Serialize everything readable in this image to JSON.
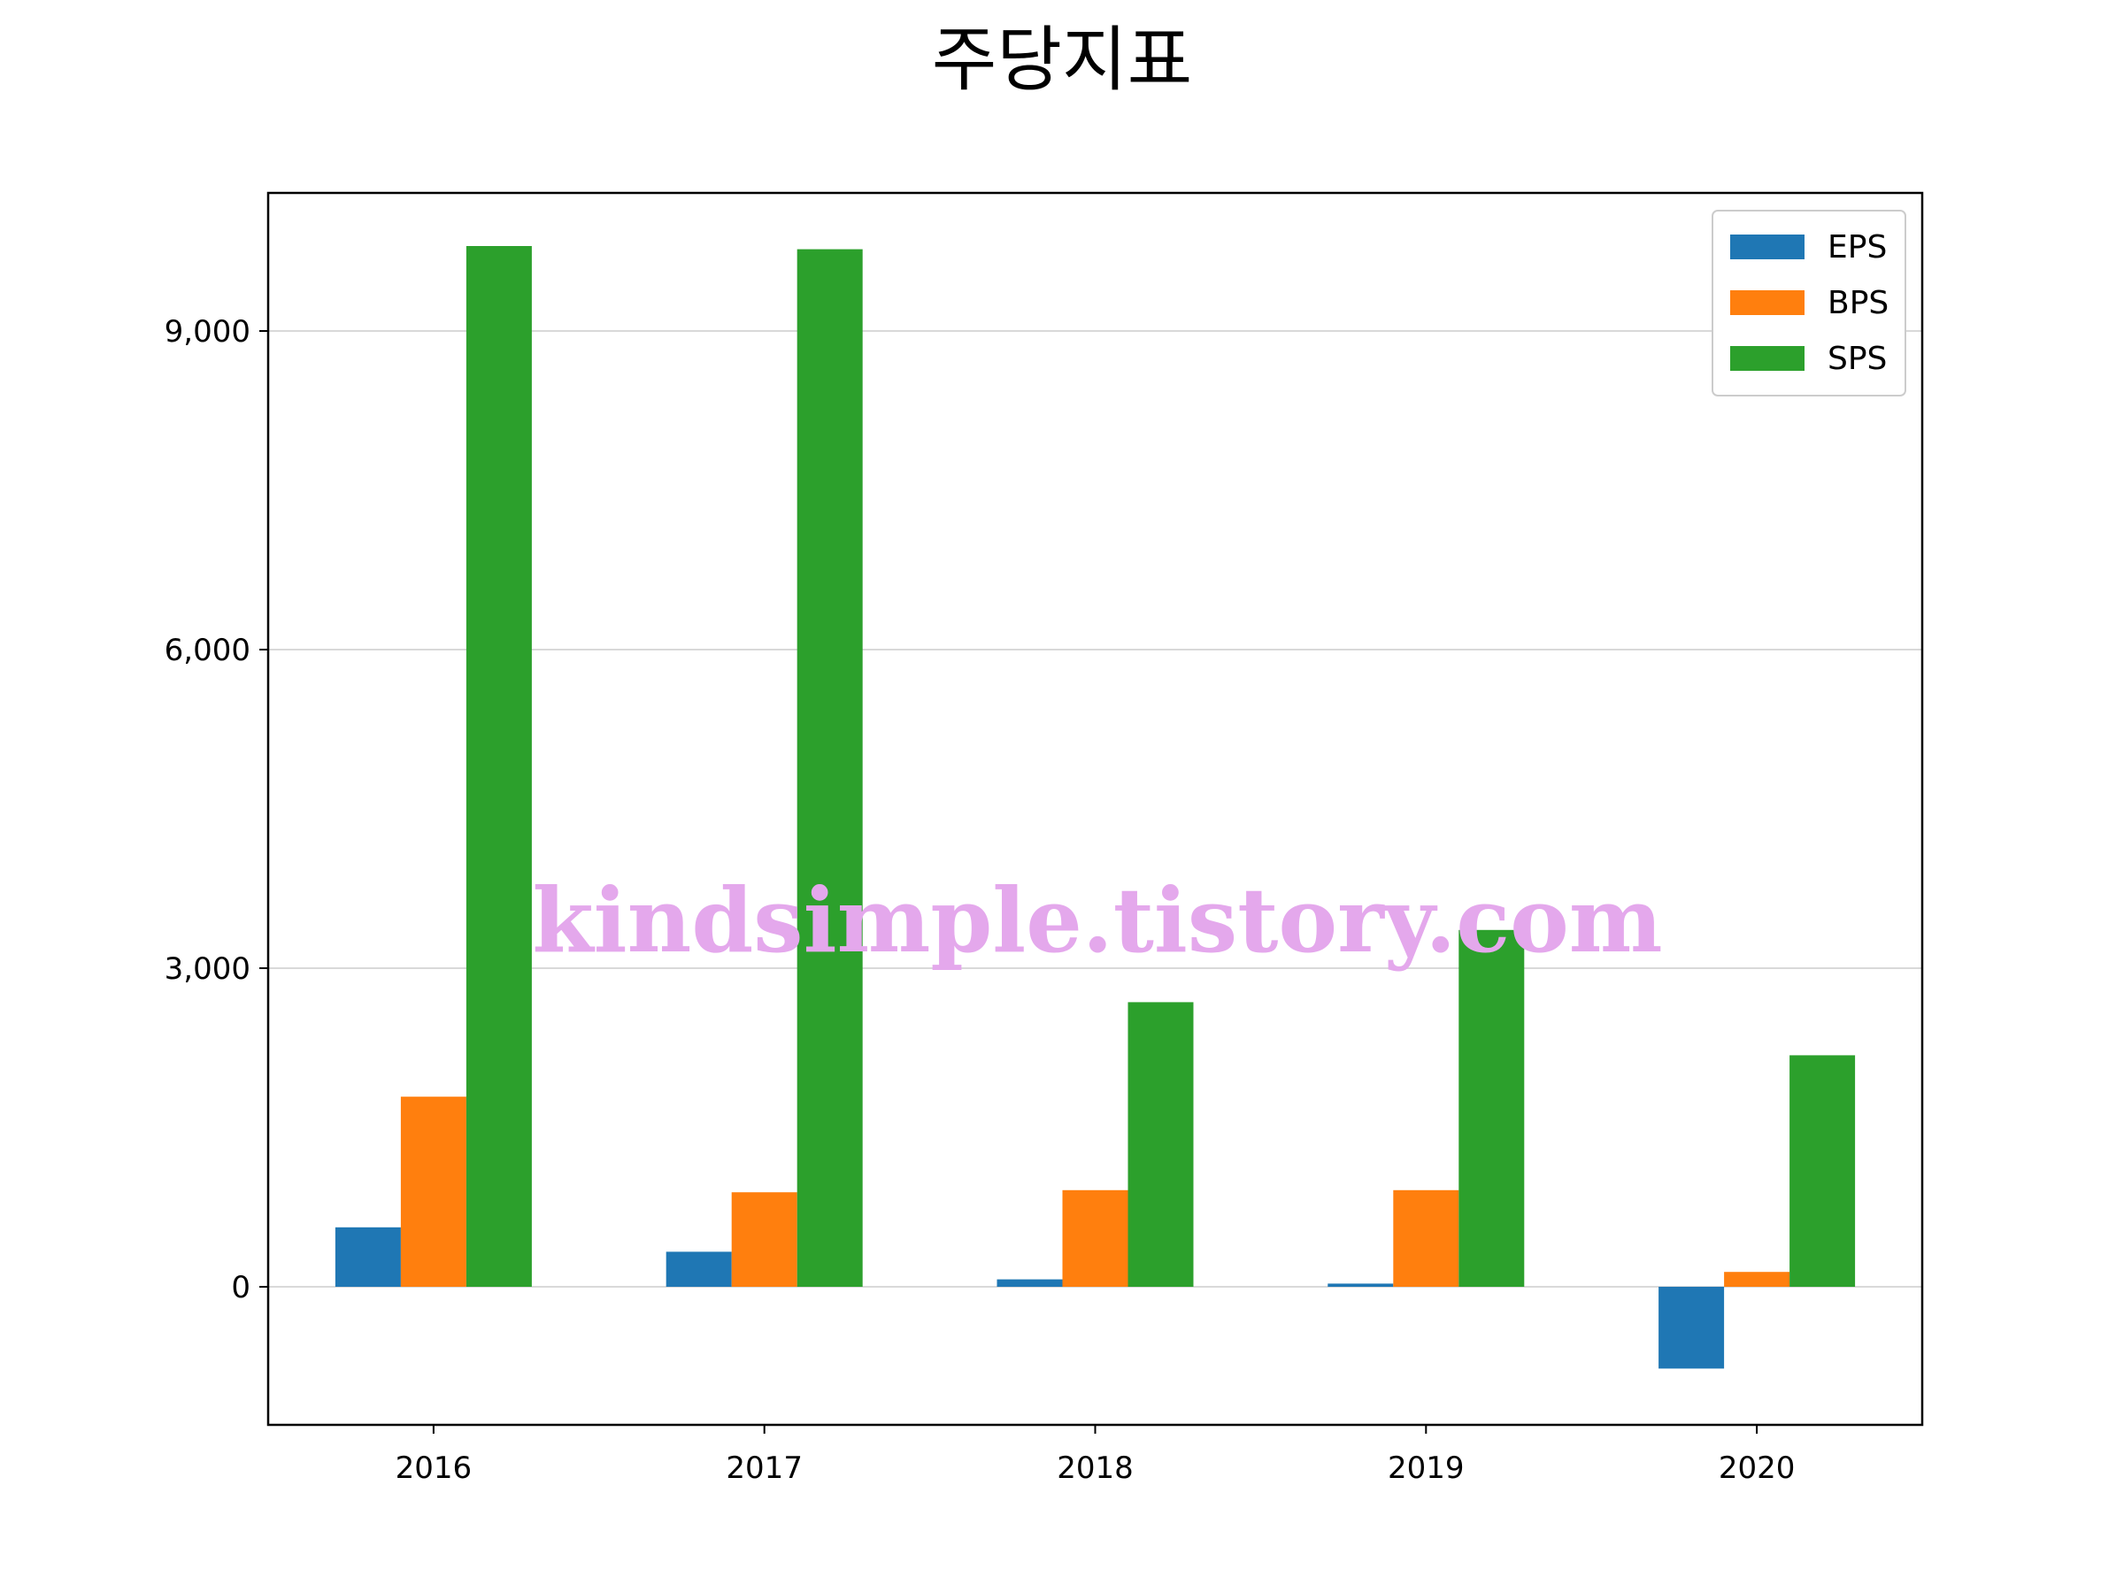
{
  "chart_data": {
    "type": "bar",
    "title": "주당지표",
    "xlabel": "",
    "ylabel": "",
    "categories": [
      "2016",
      "2017",
      "2018",
      "2019",
      "2020"
    ],
    "series": [
      {
        "name": "EPS",
        "color": "#1f77b4",
        "values": [
          560,
          330,
          70,
          30,
          -770
        ]
      },
      {
        "name": "BPS",
        "color": "#ff7f0e",
        "values": [
          1790,
          890,
          910,
          910,
          140
        ]
      },
      {
        "name": "SPS",
        "color": "#2ca02c",
        "values": [
          9800,
          9770,
          2680,
          3360,
          2180
        ]
      }
    ],
    "ylim": [
      -1300,
      10300
    ],
    "yticks": [
      0,
      3000,
      6000,
      9000
    ],
    "ytick_labels": [
      "0",
      "3,000",
      "6,000",
      "9,000"
    ],
    "grid": "y",
    "legend": "top-right"
  },
  "watermark": "kindsimple.tistory.com"
}
